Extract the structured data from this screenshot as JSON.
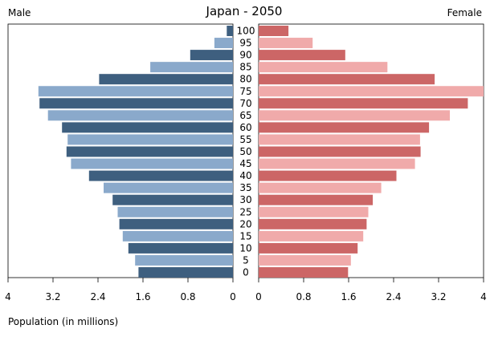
{
  "chart_data": {
    "type": "bar",
    "orientation": "horizontal",
    "layout": "population-pyramid",
    "title": "Japan - 2050",
    "left_panel_label": "Male",
    "right_panel_label": "Female",
    "xlabel": "Population (in millions)",
    "ylabel": "",
    "xlim": [
      0,
      4
    ],
    "x_ticks": [
      "0",
      "0.8",
      "1.6",
      "2.4",
      "3.2",
      "4"
    ],
    "grid": false,
    "legend": "none",
    "categories": [
      "0",
      "5",
      "10",
      "15",
      "20",
      "25",
      "30",
      "35",
      "40",
      "45",
      "50",
      "55",
      "60",
      "65",
      "70",
      "75",
      "80",
      "85",
      "90",
      "95",
      "100"
    ],
    "series": [
      {
        "name": "Male",
        "side": "left",
        "values": [
          1.68,
          1.74,
          1.86,
          1.96,
          2.02,
          2.05,
          2.14,
          2.3,
          2.56,
          2.88,
          2.96,
          2.94,
          3.04,
          3.29,
          3.44,
          3.46,
          2.38,
          1.47,
          0.76,
          0.33,
          0.11
        ],
        "colors": [
          "#3e5f7f",
          "#8aa9cb"
        ]
      },
      {
        "name": "Female",
        "side": "right",
        "values": [
          1.59,
          1.64,
          1.76,
          1.86,
          1.92,
          1.95,
          2.03,
          2.18,
          2.45,
          2.78,
          2.88,
          2.87,
          3.03,
          3.4,
          3.72,
          4.0,
          3.13,
          2.29,
          1.54,
          0.96,
          0.53
        ],
        "colors": [
          "#cc6666",
          "#f0aaaa"
        ]
      }
    ]
  }
}
